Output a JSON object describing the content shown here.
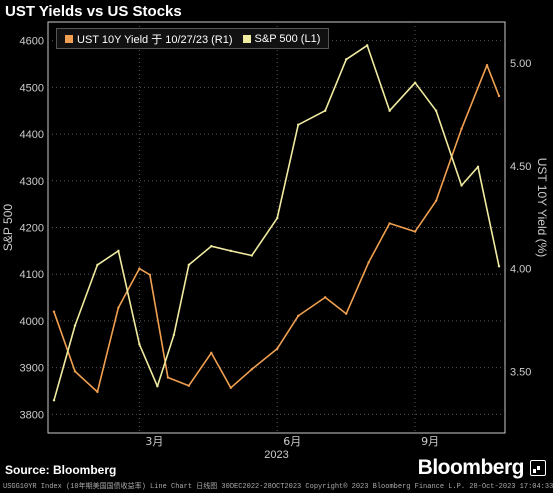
{
  "title": "UST Yields vs US Stocks",
  "source": "Source: Bloomberg",
  "brand": "Bloomberg",
  "footer": "USGG10YR Index (10年期美国国债收益率) Line Chart 日线图 30DEC2022-28OCT2023 Copyright® 2023 Bloomberg Finance L.P. 28-Oct-2023 17:04:33",
  "colors": {
    "yield": "#f0a050",
    "spx": "#f0eba0",
    "grid": "#555555",
    "axis": "#cccccc"
  },
  "chart_data": {
    "type": "line",
    "title": "UST Yields vs US Stocks",
    "xlabel": "2023",
    "x_ticks": [
      "3月",
      "6月",
      "9月"
    ],
    "y_left": {
      "label": "S&P 500",
      "range": [
        3760,
        4640
      ],
      "ticks": [
        3800,
        3900,
        4000,
        4100,
        4200,
        4300,
        4400,
        4500,
        4600
      ]
    },
    "y_right": {
      "label": "UST 10Y Yield (%)",
      "range": [
        3.2,
        5.2
      ],
      "ticks": [
        3.5,
        4.0,
        4.5,
        5.0
      ]
    },
    "legend": [
      {
        "label": "UST 10Y Yield 于 10/27/23 (R1)",
        "swatch": "#f0a050"
      },
      {
        "label": "S&P 500 (L1)",
        "swatch": "#f0eba0"
      }
    ],
    "grid": true,
    "series": [
      {
        "name": "UST 10Y Yield 于 10/27/23 (R1)",
        "axis": "right",
        "x": [
          "2023-01-03",
          "2023-01-17",
          "2023-02-01",
          "2023-02-15",
          "2023-03-01",
          "2023-03-08",
          "2023-03-20",
          "2023-04-03",
          "2023-04-18",
          "2023-05-01",
          "2023-05-15",
          "2023-06-01",
          "2023-06-15",
          "2023-07-03",
          "2023-07-17",
          "2023-08-01",
          "2023-08-15",
          "2023-09-01",
          "2023-09-15",
          "2023-10-02",
          "2023-10-19",
          "2023-10-27"
        ],
        "values": [
          3.79,
          3.5,
          3.4,
          3.81,
          4.0,
          3.97,
          3.47,
          3.43,
          3.59,
          3.42,
          3.51,
          3.61,
          3.77,
          3.86,
          3.78,
          4.03,
          4.22,
          4.18,
          4.33,
          4.68,
          4.99,
          4.84
        ]
      },
      {
        "name": "S&P 500 (L1)",
        "axis": "left",
        "x": [
          "2023-01-03",
          "2023-01-17",
          "2023-02-01",
          "2023-02-15",
          "2023-03-01",
          "2023-03-13",
          "2023-03-24",
          "2023-04-03",
          "2023-04-18",
          "2023-05-01",
          "2023-05-15",
          "2023-06-01",
          "2023-06-15",
          "2023-07-03",
          "2023-07-17",
          "2023-07-31",
          "2023-08-15",
          "2023-09-01",
          "2023-09-15",
          "2023-10-02",
          "2023-10-13",
          "2023-10-27"
        ],
        "values": [
          3830,
          3990,
          4120,
          4150,
          3950,
          3860,
          3970,
          4120,
          4160,
          4150,
          4140,
          4220,
          4420,
          4450,
          4560,
          4590,
          4450,
          4510,
          4450,
          4290,
          4330,
          4117
        ]
      }
    ]
  }
}
